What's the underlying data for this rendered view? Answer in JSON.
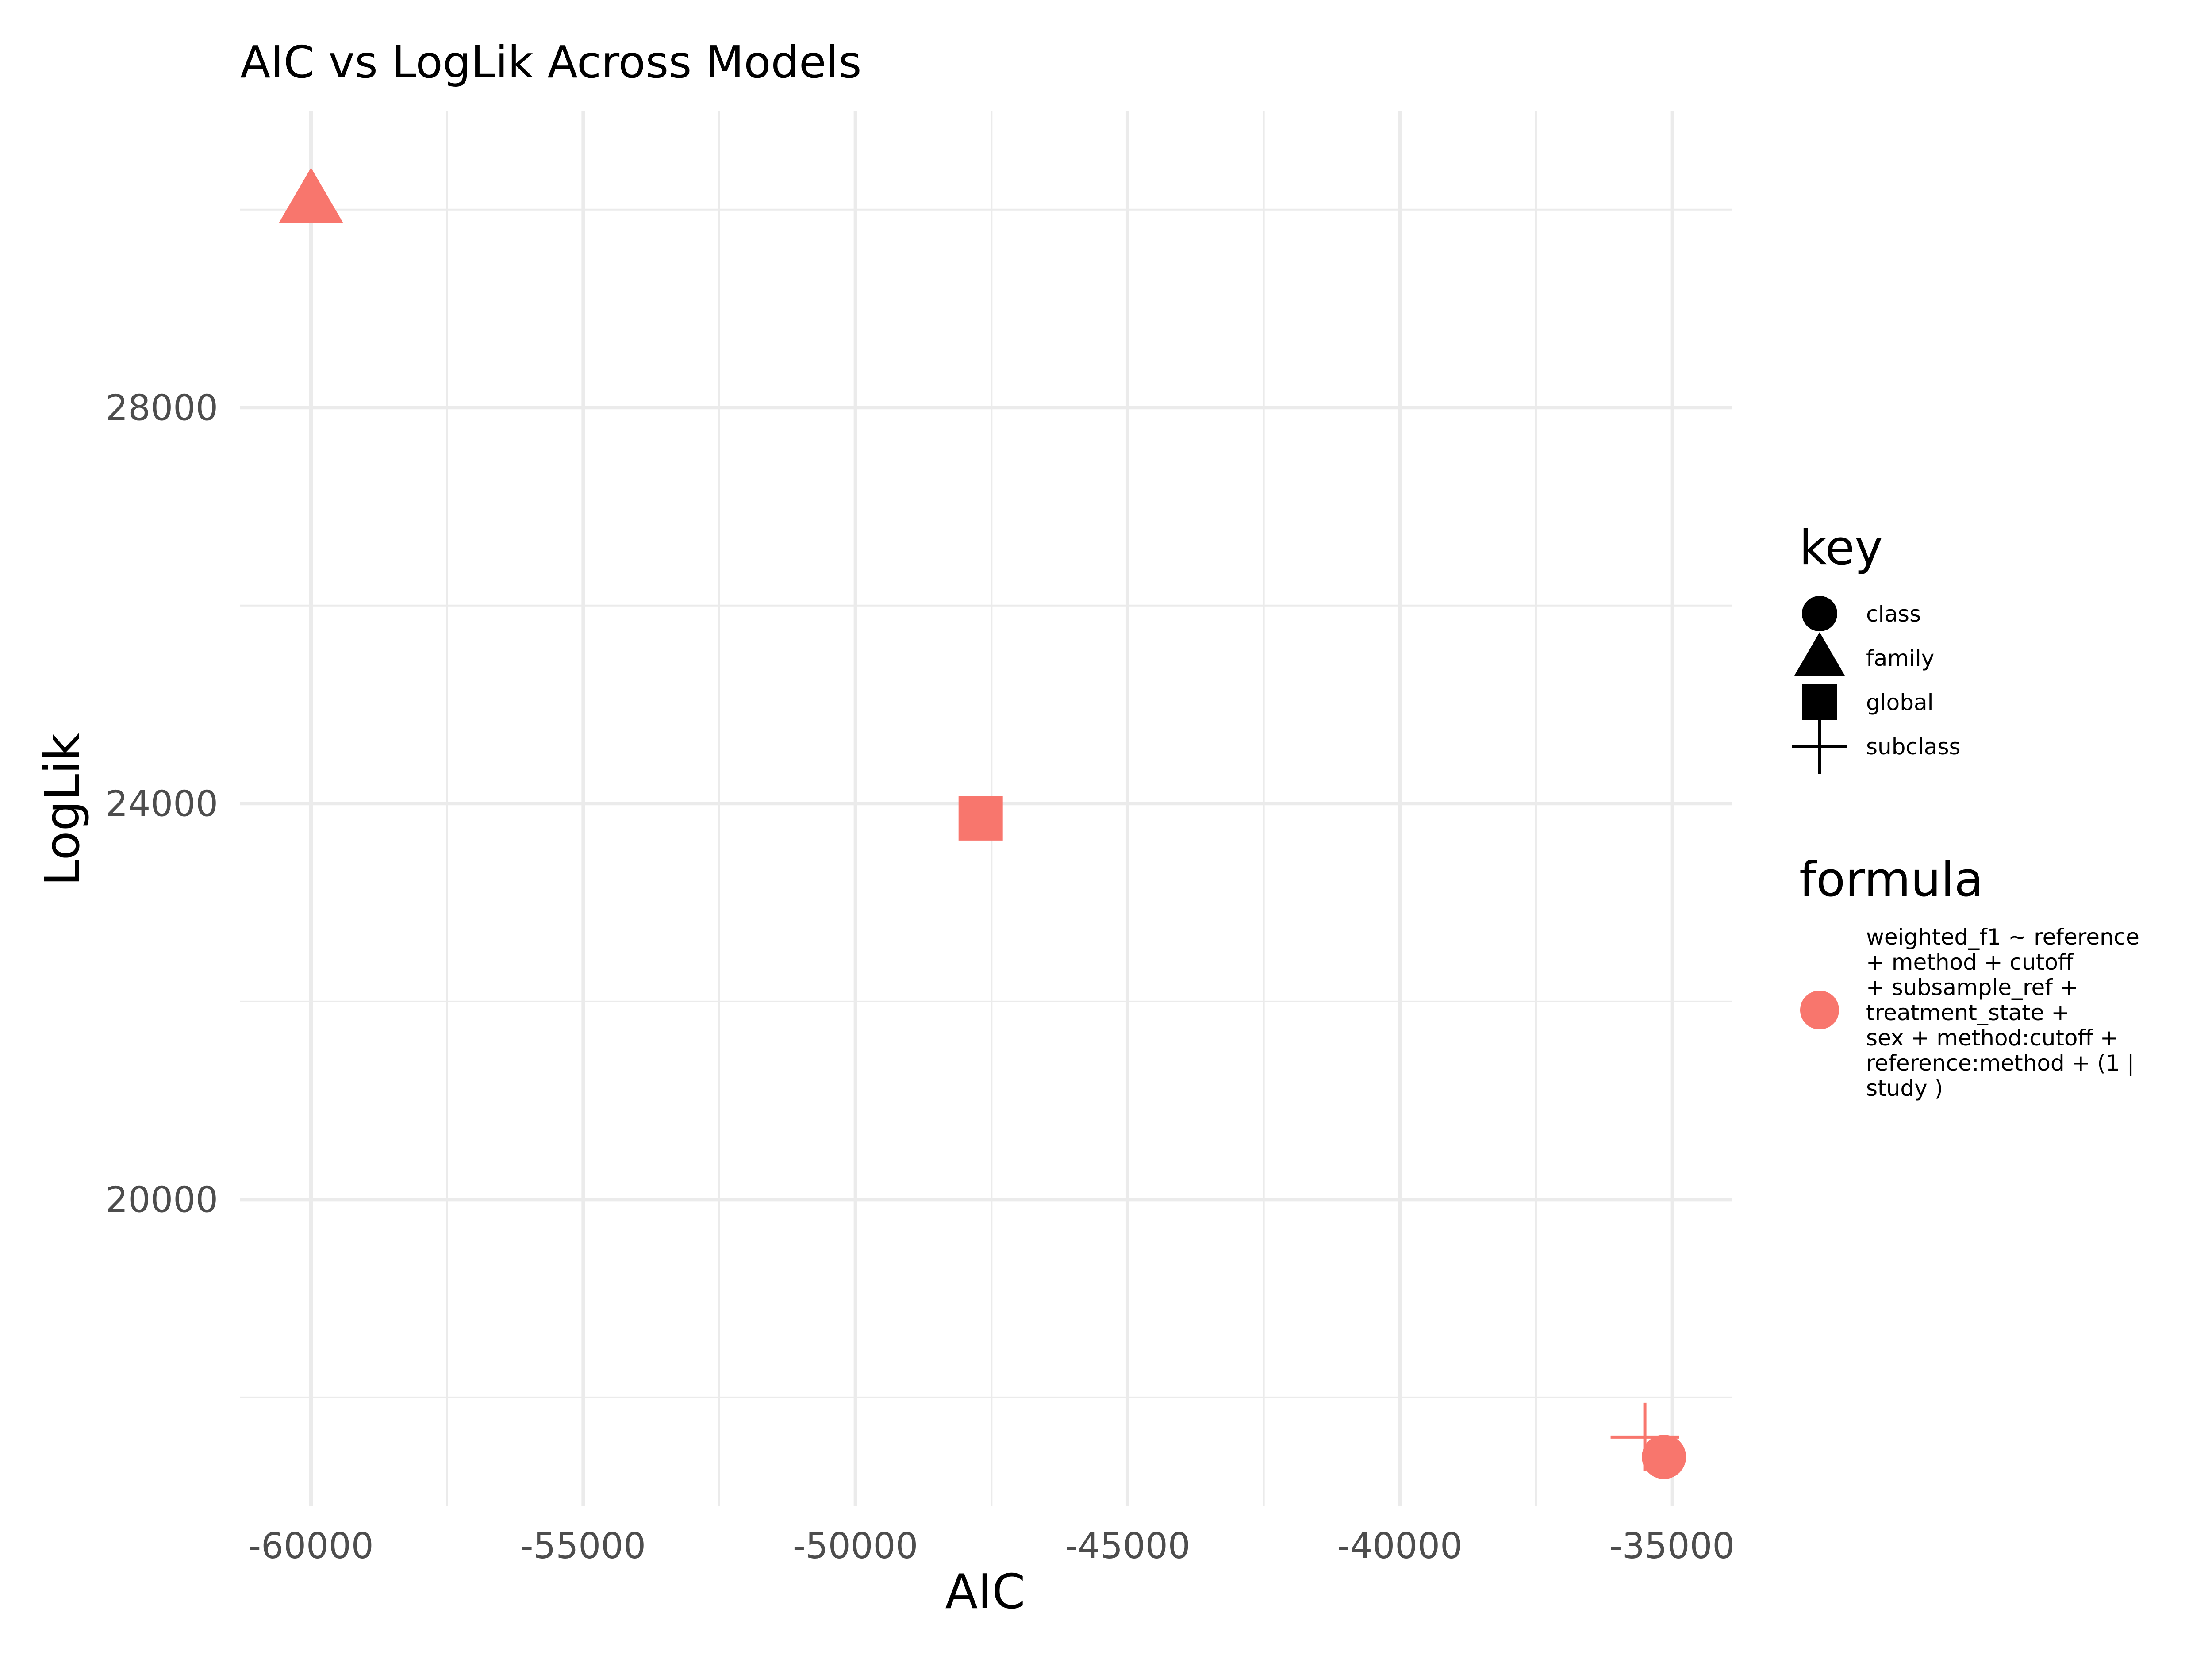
{
  "chart_data": {
    "type": "scatter",
    "title": "AIC vs LogLik Across Models",
    "xlabel": "AIC",
    "ylabel": "LogLik",
    "xlim": [
      -61300,
      -33900
    ],
    "ylim": [
      16900,
      31000
    ],
    "x_ticks": [
      -60000,
      -55000,
      -50000,
      -45000,
      -40000,
      -35000
    ],
    "x_tick_labels": [
      "-60000",
      "-55000",
      "-50000",
      "-45000",
      "-40000",
      "-35000"
    ],
    "x_minor_ticks": [
      -57500,
      -52500,
      -47500,
      -42500,
      -37500
    ],
    "y_ticks": [
      20000,
      24000,
      28000
    ],
    "y_tick_labels": [
      "20000",
      "24000",
      "28000"
    ],
    "y_minor_ticks": [
      18000,
      22000,
      26000,
      30000
    ],
    "grid": true,
    "color": "#F8766D",
    "legend_position": "right",
    "points": [
      {
        "key": "family",
        "x": -60000,
        "y": 30100
      },
      {
        "key": "global",
        "x": -47700,
        "y": 23850
      },
      {
        "key": "subclass",
        "x": -35500,
        "y": 17600
      },
      {
        "key": "class",
        "x": -35150,
        "y": 17400
      }
    ],
    "legend_key": {
      "title": "key",
      "items": [
        {
          "label": "class",
          "shape": "circle"
        },
        {
          "label": "family",
          "shape": "triangle"
        },
        {
          "label": "global",
          "shape": "square"
        },
        {
          "label": "subclass",
          "shape": "plus"
        }
      ]
    },
    "legend_formula": {
      "title": "formula",
      "lines": [
        "weighted_f1 ~ reference",
        "+ method + cutoff",
        "+ subsample_ref +",
        "treatment_state +",
        "sex + method:cutoff +",
        "reference:method + (1 |",
        "study )"
      ]
    }
  }
}
